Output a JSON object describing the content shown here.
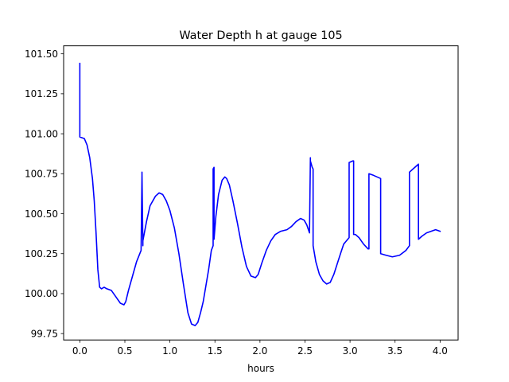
{
  "chart_data": {
    "type": "line",
    "title": "Water Depth h at gauge 105",
    "xlabel": "hours",
    "ylabel": "",
    "xlim": [
      -0.18,
      4.2
    ],
    "ylim": [
      99.71,
      101.55
    ],
    "xticks": [
      0.0,
      0.5,
      1.0,
      1.5,
      2.0,
      2.5,
      3.0,
      3.5,
      4.0
    ],
    "xtick_labels": [
      "0.0",
      "0.5",
      "1.0",
      "1.5",
      "2.0",
      "2.5",
      "3.0",
      "3.5",
      "4.0"
    ],
    "yticks": [
      99.75,
      100.0,
      100.25,
      100.5,
      100.75,
      101.0,
      101.25,
      101.5
    ],
    "ytick_labels": [
      "99.75",
      "100.00",
      "100.25",
      "100.50",
      "100.75",
      "101.00",
      "101.25",
      "101.50"
    ],
    "grid": false,
    "legend": "none",
    "series": [
      {
        "color": "#0000ff",
        "x": [
          0.0,
          0.0,
          0.0,
          0.05,
          0.08,
          0.11,
          0.14,
          0.16,
          0.18,
          0.2,
          0.22,
          0.24,
          0.27,
          0.3,
          0.35,
          0.4,
          0.45,
          0.49,
          0.51,
          0.54,
          0.58,
          0.63,
          0.68,
          0.69,
          0.69,
          0.7,
          0.7,
          0.74,
          0.78,
          0.84,
          0.88,
          0.92,
          0.96,
          1.0,
          1.05,
          1.1,
          1.15,
          1.2,
          1.24,
          1.28,
          1.31,
          1.34,
          1.37,
          1.4,
          1.43,
          1.46,
          1.48,
          1.48,
          1.49,
          1.49,
          1.51,
          1.54,
          1.58,
          1.61,
          1.63,
          1.66,
          1.7,
          1.75,
          1.8,
          1.85,
          1.9,
          1.95,
          1.98,
          2.02,
          2.07,
          2.12,
          2.17,
          2.23,
          2.3,
          2.35,
          2.4,
          2.45,
          2.49,
          2.52,
          2.55,
          2.56,
          2.56,
          2.58,
          2.59,
          2.59,
          2.62,
          2.66,
          2.7,
          2.74,
          2.78,
          2.82,
          2.86,
          2.9,
          2.93,
          2.96,
          2.99,
          2.99,
          3.03,
          3.04,
          3.04,
          3.06,
          3.1,
          3.15,
          3.2,
          3.21,
          3.21,
          3.26,
          3.34,
          3.34,
          3.4,
          3.47,
          3.55,
          3.62,
          3.66,
          3.66,
          3.7,
          3.76,
          3.76,
          3.8,
          3.85,
          3.9,
          3.95,
          4.0
        ],
        "values": [
          101.44,
          100.98,
          100.98,
          100.97,
          100.93,
          100.85,
          100.72,
          100.58,
          100.38,
          100.15,
          100.04,
          100.03,
          100.04,
          100.03,
          100.02,
          99.98,
          99.94,
          99.93,
          99.95,
          100.02,
          100.1,
          100.2,
          100.27,
          100.74,
          100.76,
          100.3,
          100.33,
          100.45,
          100.55,
          100.61,
          100.63,
          100.62,
          100.58,
          100.52,
          100.41,
          100.25,
          100.06,
          99.88,
          99.81,
          99.8,
          99.82,
          99.88,
          99.95,
          100.05,
          100.15,
          100.27,
          100.3,
          100.78,
          100.79,
          100.34,
          100.48,
          100.62,
          100.71,
          100.73,
          100.72,
          100.68,
          100.58,
          100.44,
          100.29,
          100.17,
          100.11,
          100.1,
          100.12,
          100.19,
          100.27,
          100.33,
          100.37,
          100.39,
          100.4,
          100.42,
          100.45,
          100.47,
          100.46,
          100.43,
          100.38,
          100.85,
          100.83,
          100.79,
          100.78,
          100.3,
          100.2,
          100.12,
          100.08,
          100.06,
          100.07,
          100.12,
          100.19,
          100.26,
          100.31,
          100.33,
          100.35,
          100.82,
          100.83,
          100.83,
          100.37,
          100.37,
          100.35,
          100.31,
          100.28,
          100.28,
          100.75,
          100.74,
          100.72,
          100.25,
          100.24,
          100.23,
          100.24,
          100.27,
          100.3,
          100.76,
          100.78,
          100.81,
          100.34,
          100.36,
          100.38,
          100.39,
          100.4,
          100.39
        ]
      }
    ]
  }
}
